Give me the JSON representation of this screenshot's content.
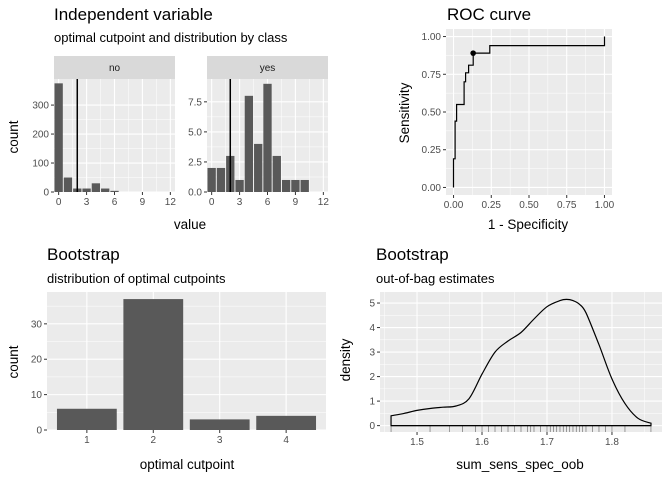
{
  "chart_data": [
    {
      "type": "bar",
      "title": "Independent variable",
      "subtitle": "optimal cutpoint and distribution by class",
      "xlabel": "value",
      "ylabel": "count",
      "xticks": [
        0,
        3,
        6,
        9,
        12
      ],
      "cutpoint": 2,
      "facets": [
        {
          "name": "no",
          "bin_centers": [
            0,
            1,
            2,
            3,
            4,
            5,
            6,
            7,
            8,
            9,
            10,
            11,
            12
          ],
          "values": [
            375,
            50,
            12,
            12,
            30,
            12,
            4,
            0,
            0,
            0,
            0,
            0,
            0
          ],
          "ylim": [
            0,
            390
          ],
          "yticks": [
            0,
            100,
            200,
            300
          ]
        },
        {
          "name": "yes",
          "bin_centers": [
            0,
            1,
            2,
            3,
            4,
            5,
            6,
            7,
            8,
            9,
            10,
            11,
            12
          ],
          "values": [
            2,
            2,
            3,
            1,
            8,
            4,
            9,
            3,
            1,
            1,
            1,
            0,
            0
          ],
          "ylim": [
            0,
            9.4
          ],
          "yticks": [
            0,
            2.5,
            5.0,
            7.5
          ]
        }
      ]
    },
    {
      "type": "line",
      "title": "ROC curve",
      "xlabel": "1 - Specificity",
      "ylabel": "Sensitivity",
      "xlim": [
        -0.05,
        1.05
      ],
      "ylim": [
        -0.05,
        1.05
      ],
      "xticks": [
        "0.00",
        "0.25",
        "0.50",
        "0.75",
        "1.00"
      ],
      "yticks": [
        "0.00",
        "0.25",
        "0.50",
        "0.75",
        "1.00"
      ],
      "x": [
        0,
        0,
        0.01,
        0.01,
        0.02,
        0.02,
        0.03,
        0.03,
        0.07,
        0.07,
        0.08,
        0.08,
        0.1,
        0.1,
        0.13,
        0.13,
        0.24,
        0.24,
        1.0,
        1.0
      ],
      "y": [
        0,
        0.19,
        0.19,
        0.44,
        0.44,
        0.55,
        0.55,
        0.55,
        0.55,
        0.7,
        0.7,
        0.76,
        0.76,
        0.81,
        0.81,
        0.89,
        0.89,
        0.94,
        0.94,
        1.0
      ],
      "optimal_point": [
        0.13,
        0.89
      ]
    },
    {
      "type": "bar",
      "title": "Bootstrap",
      "subtitle": "distribution of optimal cutpoints",
      "xlabel": "optimal cutpoint",
      "ylabel": "count",
      "categories": [
        "1",
        "2",
        "3",
        "4"
      ],
      "values": [
        6,
        37,
        3,
        4
      ],
      "ylim": [
        0,
        39
      ],
      "yticks": [
        0,
        10,
        20,
        30
      ]
    },
    {
      "type": "area",
      "title": "Bootstrap",
      "subtitle": "out-of-bag estimates",
      "xlabel": "sum_sens_spec_oob",
      "ylabel": "density",
      "xlim": [
        1.443,
        1.877
      ],
      "ylim": [
        -0.26,
        5.45
      ],
      "xticks": [
        "1.5",
        "1.6",
        "1.7",
        "1.8"
      ],
      "yticks": [
        0,
        1,
        2,
        3,
        4,
        5
      ],
      "x": [
        1.46,
        1.48,
        1.5,
        1.52,
        1.54,
        1.56,
        1.58,
        1.6,
        1.62,
        1.64,
        1.66,
        1.68,
        1.7,
        1.72,
        1.73,
        1.74,
        1.75,
        1.76,
        1.78,
        1.8,
        1.82,
        1.84,
        1.86
      ],
      "y": [
        0.4,
        0.5,
        0.62,
        0.7,
        0.75,
        0.8,
        1.1,
        2.1,
        3.0,
        3.45,
        3.8,
        4.35,
        4.85,
        5.1,
        5.15,
        5.1,
        4.95,
        4.6,
        3.3,
        1.9,
        0.9,
        0.3,
        0.1
      ],
      "rug": [
        1.46,
        1.52,
        1.55,
        1.57,
        1.59,
        1.6,
        1.61,
        1.62,
        1.63,
        1.64,
        1.65,
        1.66,
        1.67,
        1.675,
        1.68,
        1.69,
        1.7,
        1.705,
        1.71,
        1.715,
        1.72,
        1.725,
        1.73,
        1.735,
        1.74,
        1.745,
        1.75,
        1.755,
        1.76,
        1.77,
        1.78,
        1.79,
        1.8,
        1.82,
        1.86
      ]
    }
  ]
}
